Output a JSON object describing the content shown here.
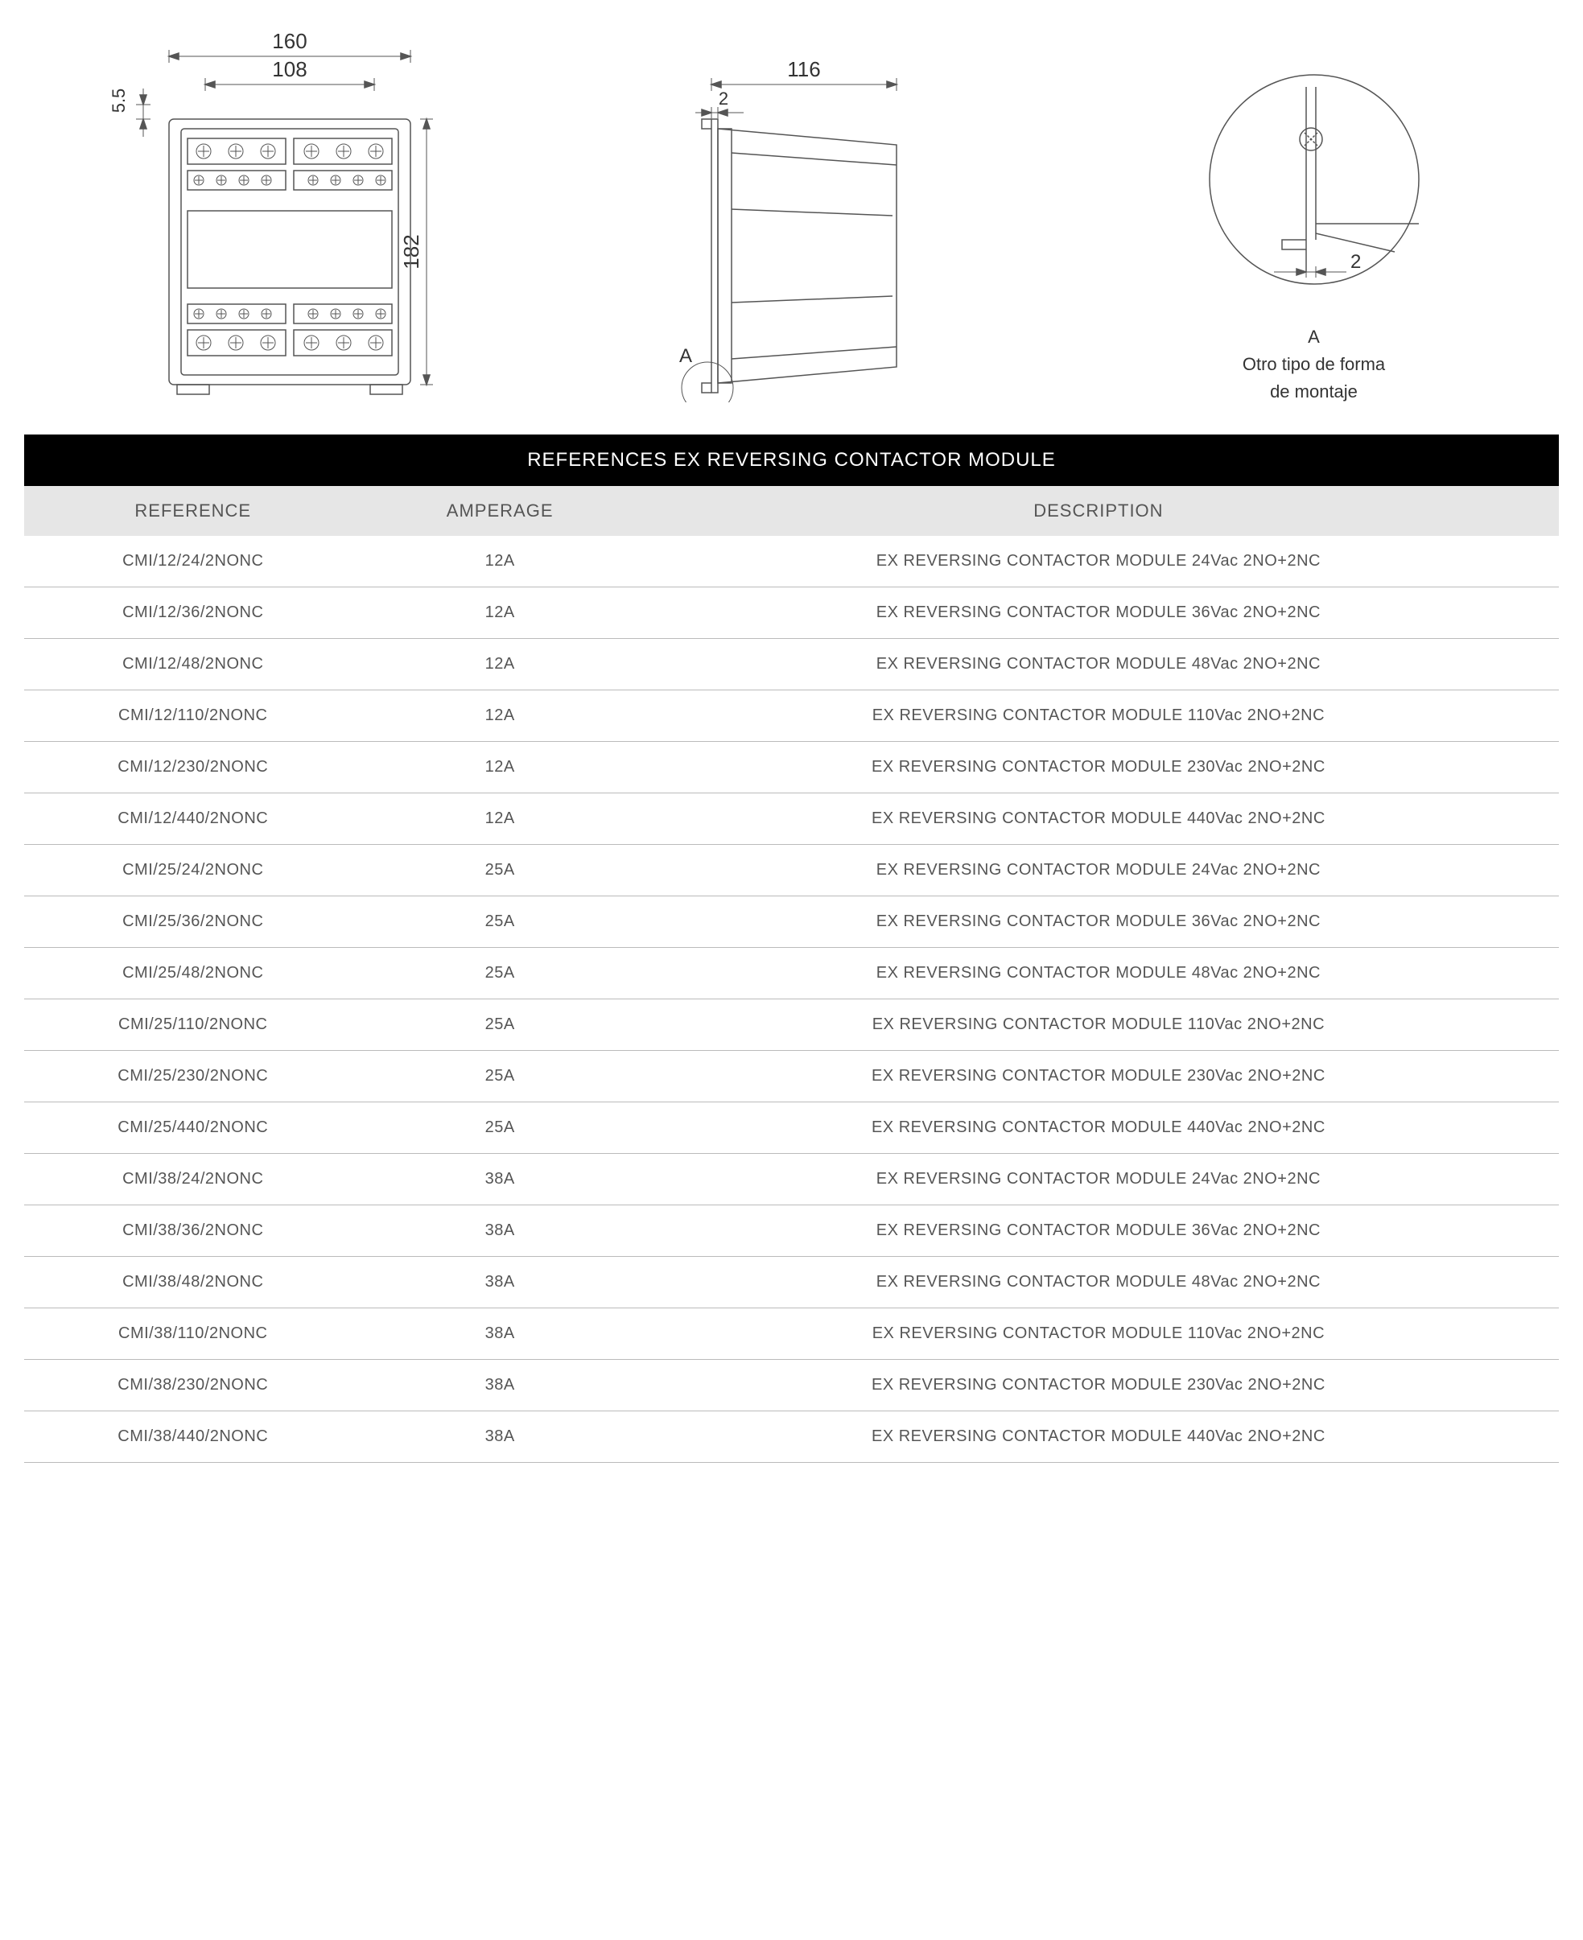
{
  "diagrams": {
    "front": {
      "dim_outer_width": "160",
      "dim_inner_width": "108",
      "dim_height": "182",
      "dim_offset": "5.5"
    },
    "side": {
      "dim_depth": "116",
      "dim_flange": "2",
      "callout": "A"
    },
    "detail": {
      "label": "A",
      "caption_line1": "Otro tipo de forma",
      "caption_line2": "de montaje",
      "dim": "2"
    },
    "stroke_color": "#555555",
    "fill_color": "#ffffff",
    "text_color": "#333333",
    "dim_fontsize": 20
  },
  "table": {
    "title": "REFERENCES EX REVERSING CONTACTOR MODULE",
    "columns": [
      "REFERENCE",
      "AMPERAGE",
      "DESCRIPTION"
    ],
    "rows": [
      [
        "CMI/12/24/2NONC",
        "12A",
        "EX REVERSING CONTACTOR MODULE 24Vac 2NO+2NC"
      ],
      [
        "CMI/12/36/2NONC",
        "12A",
        "EX REVERSING CONTACTOR MODULE 36Vac 2NO+2NC"
      ],
      [
        "CMI/12/48/2NONC",
        "12A",
        "EX REVERSING CONTACTOR MODULE 48Vac 2NO+2NC"
      ],
      [
        "CMI/12/110/2NONC",
        "12A",
        "EX REVERSING CONTACTOR MODULE 110Vac 2NO+2NC"
      ],
      [
        "CMI/12/230/2NONC",
        "12A",
        "EX REVERSING CONTACTOR MODULE 230Vac 2NO+2NC"
      ],
      [
        "CMI/12/440/2NONC",
        "12A",
        "EX REVERSING CONTACTOR MODULE 440Vac 2NO+2NC"
      ],
      [
        "CMI/25/24/2NONC",
        "25A",
        "EX REVERSING CONTACTOR MODULE 24Vac 2NO+2NC"
      ],
      [
        "CMI/25/36/2NONC",
        "25A",
        "EX REVERSING CONTACTOR MODULE 36Vac 2NO+2NC"
      ],
      [
        "CMI/25/48/2NONC",
        "25A",
        "EX REVERSING CONTACTOR MODULE 48Vac 2NO+2NC"
      ],
      [
        "CMI/25/110/2NONC",
        "25A",
        "EX REVERSING CONTACTOR MODULE 110Vac 2NO+2NC"
      ],
      [
        "CMI/25/230/2NONC",
        "25A",
        "EX REVERSING CONTACTOR MODULE 230Vac 2NO+2NC"
      ],
      [
        "CMI/25/440/2NONC",
        "25A",
        "EX REVERSING CONTACTOR MODULE 440Vac 2NO+2NC"
      ],
      [
        "CMI/38/24/2NONC",
        "38A",
        "EX REVERSING CONTACTOR MODULE 24Vac 2NO+2NC"
      ],
      [
        "CMI/38/36/2NONC",
        "38A",
        "EX REVERSING CONTACTOR MODULE 36Vac 2NO+2NC"
      ],
      [
        "CMI/38/48/2NONC",
        "38A",
        "EX REVERSING CONTACTOR MODULE 48Vac 2NO+2NC"
      ],
      [
        "CMI/38/110/2NONC",
        "38A",
        "EX REVERSING CONTACTOR MODULE 110Vac 2NO+2NC"
      ],
      [
        "CMI/38/230/2NONC",
        "38A",
        "EX REVERSING CONTACTOR MODULE 230Vac 2NO+2NC"
      ],
      [
        "CMI/38/440/2NONC",
        "38A",
        "EX REVERSING CONTACTOR MODULE 440Vac 2NO+2NC"
      ]
    ],
    "title_bg": "#000000",
    "title_color": "#ffffff",
    "header_bg": "#e6e6e6",
    "row_border": "#bbbbbb",
    "text_color": "#555555"
  }
}
